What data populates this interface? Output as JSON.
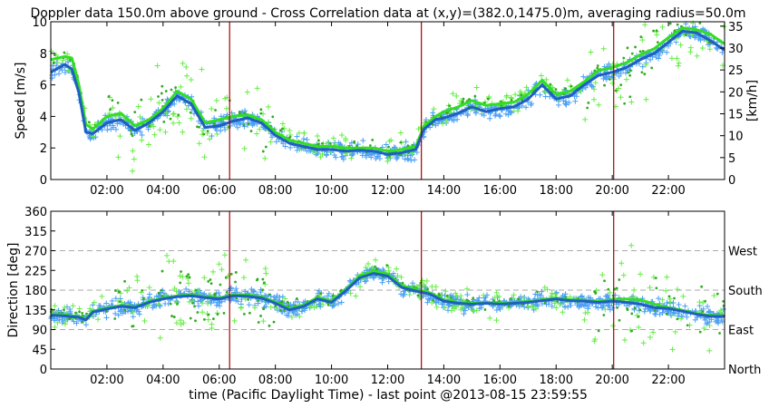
{
  "chart_data": [
    {
      "type": "scatter",
      "title": "Doppler data 150.0m above ground - Cross Correlation data at (x,y)=(382.0,1475.0)m, averaging radius=50.0m",
      "xlabel": "",
      "ylabel": "Speed [m/s]",
      "ylabel_right": "[km/h]",
      "xlim": [
        0,
        24
      ],
      "ylim": [
        0,
        10
      ],
      "ylim_right": [
        0,
        36
      ],
      "x_ticks": [
        2,
        4,
        6,
        8,
        10,
        12,
        14,
        16,
        18,
        20,
        22
      ],
      "x_tick_labels": [
        "02:00",
        "04:00",
        "06:00",
        "08:00",
        "10:00",
        "12:00",
        "14:00",
        "16:00",
        "18:00",
        "20:00",
        "22:00"
      ],
      "y_ticks": [
        0,
        2,
        4,
        6,
        8,
        10
      ],
      "y_tick_labels": [
        "0",
        "2",
        "4",
        "6",
        "8",
        "10"
      ],
      "y_ticks_right": [
        0,
        5,
        10,
        15,
        20,
        25,
        30,
        35
      ],
      "y_tick_labels_right": [
        "0",
        "5",
        "10",
        "15",
        "20",
        "25",
        "30",
        "35"
      ],
      "vlines": [
        6.37,
        13.2,
        20.05
      ],
      "grid": false,
      "series": [
        {
          "x": [
            0.0,
            0.5,
            0.75,
            1.0,
            1.25,
            1.5,
            2.0,
            2.5,
            3.0,
            3.5,
            4.0,
            4.5,
            5.0,
            5.5,
            6.0,
            6.5,
            7.0,
            7.5,
            8.0,
            8.5,
            9.0,
            9.5,
            10.0,
            10.5,
            11.0,
            11.5,
            12.0,
            12.5,
            13.0,
            13.3,
            13.7,
            14.0,
            14.5,
            15.0,
            15.5,
            16.0,
            16.5,
            17.0,
            17.5,
            18.0,
            18.5,
            19.0,
            19.5,
            20.0,
            20.5,
            21.0,
            21.5,
            22.0,
            22.5,
            23.0,
            23.5,
            24.0
          ],
          "y": [
            6.8,
            7.3,
            7.0,
            5.5,
            3.0,
            2.9,
            3.6,
            3.8,
            3.1,
            3.6,
            4.3,
            5.3,
            4.8,
            3.3,
            3.4,
            3.7,
            3.9,
            3.6,
            2.8,
            2.3,
            2.1,
            1.9,
            1.9,
            1.8,
            1.85,
            1.8,
            1.6,
            1.7,
            1.9,
            3.2,
            3.8,
            3.9,
            4.2,
            4.6,
            4.3,
            4.5,
            4.6,
            5.1,
            6.0,
            5.1,
            5.3,
            6.0,
            6.6,
            6.8,
            7.1,
            7.6,
            8.0,
            8.7,
            9.4,
            9.3,
            8.8,
            8.2
          ]
        },
        {
          "x": [
            0.0,
            0.5,
            0.75,
            1.0,
            1.25,
            1.5,
            2.0,
            2.5,
            3.0,
            3.5,
            4.0,
            4.5,
            5.0,
            5.5,
            6.0,
            6.5,
            7.0,
            7.5,
            8.0,
            8.5,
            9.0,
            9.5,
            10.0,
            10.5,
            11.0,
            11.5,
            12.0,
            12.5,
            13.0,
            13.3,
            13.7,
            14.0,
            14.5,
            15.0,
            15.5,
            16.0,
            16.5,
            17.0,
            17.5,
            18.0,
            18.5,
            19.0,
            19.5,
            20.0,
            20.5,
            21.0,
            21.5,
            22.0,
            22.5,
            23.0,
            23.5,
            24.0
          ],
          "y": [
            7.6,
            7.8,
            7.7,
            6.0,
            3.5,
            3.2,
            4.0,
            4.2,
            3.4,
            3.8,
            4.5,
            5.6,
            5.1,
            3.6,
            3.8,
            4.0,
            4.1,
            3.8,
            3.0,
            2.5,
            2.3,
            2.1,
            2.1,
            2.0,
            2.0,
            2.0,
            1.8,
            1.9,
            2.1,
            3.4,
            4.0,
            4.3,
            4.6,
            5.0,
            4.7,
            4.8,
            4.9,
            5.4,
            6.3,
            5.4,
            5.6,
            6.2,
            6.9,
            7.1,
            7.4,
            7.9,
            8.3,
            9.0,
            9.6,
            9.5,
            9.2,
            8.6
          ]
        }
      ]
    },
    {
      "type": "scatter",
      "title": "",
      "xlabel": "time (Pacific Daylight Time) - last point @2013-08-15 23:59:55",
      "ylabel": "Direction [deg]",
      "xlim": [
        0,
        24
      ],
      "ylim": [
        0,
        360
      ],
      "x_ticks": [
        2,
        4,
        6,
        8,
        10,
        12,
        14,
        16,
        18,
        20,
        22
      ],
      "x_tick_labels": [
        "02:00",
        "04:00",
        "06:00",
        "08:00",
        "10:00",
        "12:00",
        "14:00",
        "16:00",
        "18:00",
        "20:00",
        "22:00"
      ],
      "y_ticks": [
        0,
        45,
        90,
        135,
        180,
        225,
        270,
        315,
        360
      ],
      "y_tick_labels": [
        "0",
        "45",
        "90",
        "135",
        "180",
        "225",
        "270",
        "315",
        "360"
      ],
      "right_ticks": [
        0,
        90,
        180,
        270
      ],
      "right_tick_labels": [
        "North",
        "East",
        "South",
        "West"
      ],
      "hlines": [
        90,
        180,
        270
      ],
      "vlines": [
        6.37,
        13.2,
        20.05
      ],
      "grid": false,
      "series": [
        {
          "x": [
            0.0,
            0.5,
            1.0,
            1.25,
            1.5,
            2.0,
            2.5,
            3.0,
            3.5,
            4.0,
            4.5,
            5.0,
            5.5,
            6.0,
            6.5,
            7.0,
            7.5,
            8.0,
            8.5,
            9.0,
            9.5,
            10.0,
            10.5,
            11.0,
            11.5,
            12.0,
            12.5,
            13.0,
            13.5,
            14.0,
            14.5,
            15.0,
            15.5,
            16.0,
            16.5,
            17.0,
            17.5,
            18.0,
            18.5,
            19.0,
            19.5,
            20.0,
            20.5,
            21.0,
            21.5,
            22.0,
            22.5,
            23.0,
            23.5,
            24.0
          ],
          "y": [
            123,
            121,
            118,
            112,
            130,
            137,
            143,
            140,
            152,
            160,
            165,
            167,
            163,
            160,
            167,
            166,
            162,
            150,
            135,
            143,
            160,
            152,
            178,
            208,
            218,
            212,
            186,
            178,
            171,
            155,
            150,
            148,
            150,
            148,
            150,
            152,
            156,
            160,
            156,
            155,
            152,
            155,
            152,
            148,
            140,
            138,
            132,
            125,
            120,
            120
          ]
        },
        {
          "x": [
            0.0,
            0.5,
            1.0,
            1.25,
            1.5,
            2.0,
            2.5,
            3.0,
            3.5,
            4.0,
            4.5,
            5.0,
            5.5,
            6.0,
            6.5,
            7.0,
            7.5,
            8.0,
            8.5,
            9.0,
            9.5,
            10.0,
            10.5,
            11.0,
            11.5,
            12.0,
            12.5,
            13.0,
            13.5,
            14.0,
            14.5,
            15.0,
            15.5,
            16.0,
            16.5,
            17.0,
            17.5,
            18.0,
            18.5,
            19.0,
            19.5,
            20.0,
            20.5,
            21.0,
            21.5,
            22.0,
            22.5,
            23.0,
            23.5,
            24.0
          ],
          "y": [
            125,
            123,
            120,
            114,
            132,
            139,
            145,
            142,
            154,
            162,
            167,
            169,
            165,
            162,
            170,
            169,
            165,
            153,
            138,
            146,
            163,
            155,
            181,
            212,
            224,
            217,
            190,
            182,
            174,
            158,
            152,
            150,
            152,
            150,
            152,
            154,
            158,
            162,
            158,
            157,
            155,
            158,
            160,
            158,
            148,
            140,
            134,
            127,
            122,
            122
          ]
        }
      ]
    }
  ]
}
